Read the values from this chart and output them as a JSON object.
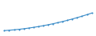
{
  "x": [
    0,
    1,
    2,
    3,
    4,
    5,
    6,
    7,
    8,
    9,
    10,
    11,
    12,
    13,
    14,
    15,
    16,
    17,
    18
  ],
  "y": [
    100,
    110,
    122,
    136,
    152,
    170,
    190,
    212,
    236,
    262,
    290,
    320,
    352,
    386,
    422,
    460,
    500,
    542,
    586
  ],
  "line_color": "#3a8cc8",
  "marker": "o",
  "marker_size": 1.5,
  "linewidth": 0.8,
  "background_color": "#ffffff",
  "ylim": [
    0,
    900
  ],
  "xlim": [
    -0.5,
    18.5
  ]
}
